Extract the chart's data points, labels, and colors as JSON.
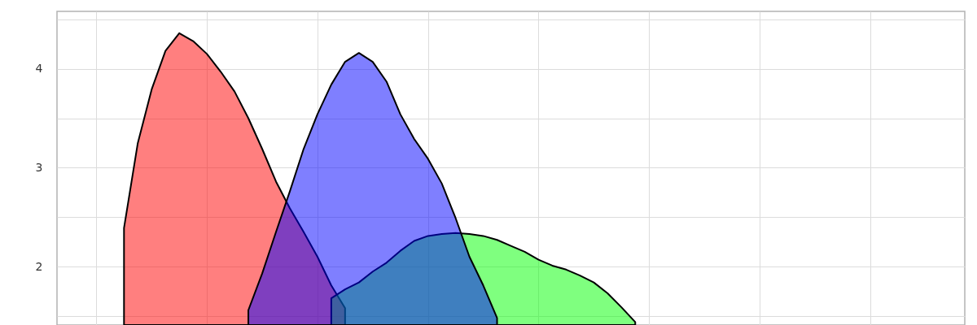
{
  "chart_data": {
    "type": "area",
    "categories": [
      null,
      null,
      null,
      null,
      null,
      null,
      null,
      null,
      null,
      null,
      null,
      null,
      null,
      null,
      null,
      null,
      null,
      null,
      null,
      null,
      null,
      null,
      null,
      null,
      null,
      null,
      null,
      null,
      null,
      null,
      null,
      null,
      null,
      null,
      null,
      null,
      null,
      null,
      null,
      null,
      null,
      null,
      null,
      null,
      null,
      null,
      null,
      null,
      null,
      null,
      null,
      null,
      null,
      null,
      null,
      null,
      null,
      null,
      null,
      null,
      null,
      null,
      null,
      null,
      null
    ],
    "series": [
      {
        "color": "#ff0000",
        "values": [
          null,
          null,
          null,
          null,
          2.39,
          3.25,
          3.79,
          4.18,
          4.36,
          4.28,
          4.15,
          3.97,
          3.77,
          3.5,
          3.19,
          2.86,
          2.59,
          2.35,
          2.1,
          1.81,
          1.58,
          null,
          null,
          null,
          null,
          null,
          null,
          null,
          null,
          null,
          null,
          null,
          null,
          null,
          null,
          null,
          null,
          null,
          null,
          null,
          null,
          null,
          null,
          null,
          null,
          null,
          null,
          null,
          null,
          null,
          null,
          null,
          null,
          null,
          null,
          null,
          null,
          null,
          null,
          null,
          null,
          null,
          null,
          null,
          null
        ]
      },
      {
        "color": "#00ff00",
        "values": [
          null,
          null,
          null,
          null,
          null,
          null,
          null,
          null,
          null,
          null,
          null,
          null,
          null,
          null,
          null,
          null,
          null,
          null,
          null,
          1.68,
          1.77,
          1.84,
          1.95,
          2.04,
          2.16,
          2.26,
          2.31,
          2.33,
          2.34,
          2.33,
          2.31,
          2.27,
          2.21,
          2.15,
          2.07,
          2.01,
          1.97,
          1.91,
          1.84,
          1.73,
          1.59,
          1.44,
          null,
          null,
          null,
          null,
          null,
          null,
          null,
          null,
          null,
          null,
          null,
          null,
          null,
          null,
          null,
          null,
          null,
          null,
          null,
          null,
          null,
          null,
          null
        ]
      },
      {
        "color": "#0000ff",
        "values": [
          null,
          null,
          null,
          null,
          null,
          null,
          null,
          null,
          null,
          null,
          null,
          null,
          null,
          1.56,
          1.93,
          2.35,
          2.76,
          3.19,
          3.54,
          3.84,
          4.07,
          4.16,
          4.07,
          3.87,
          3.54,
          3.29,
          3.09,
          2.84,
          2.49,
          2.1,
          1.81,
          1.48,
          null,
          null,
          null,
          null,
          null,
          null,
          null,
          null,
          null,
          null,
          null,
          null,
          null,
          null,
          null,
          null,
          null,
          null,
          null,
          null,
          null,
          null,
          null,
          null,
          null,
          null,
          null,
          null,
          null,
          null,
          null,
          null,
          null
        ]
      }
    ],
    "ylim": [
      1.41,
      4.58
    ],
    "yticks": [
      {
        "value": 1.5,
        "label": null
      },
      2,
      {
        "value": 2.5,
        "label": null
      },
      3,
      {
        "value": 3.5,
        "label": null
      },
      4,
      {
        "value": 4.5,
        "label": null
      }
    ],
    "grid": true,
    "tick_labels": "y"
  }
}
